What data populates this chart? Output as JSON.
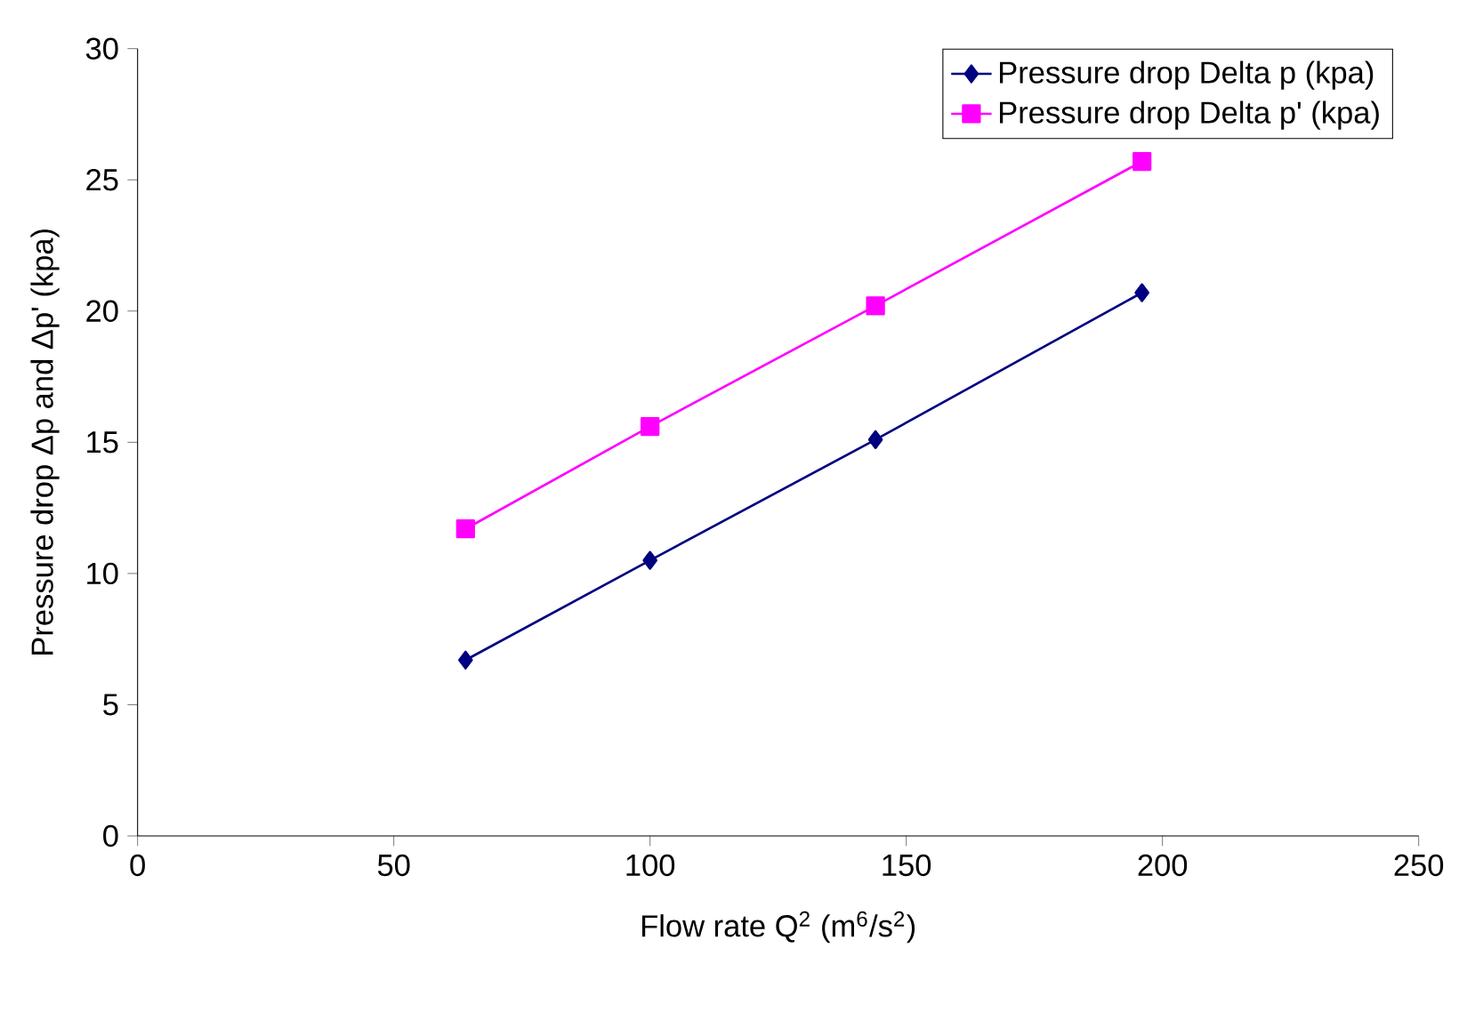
{
  "chart_data": {
    "type": "line",
    "xlabel": "Flow rate Q$^{2}$ (m$^{6}$/s$^{2}$)",
    "ylabel": "Pressure drop Δp and Δp' (kpa)",
    "x": [
      64,
      100,
      144,
      196
    ],
    "series": [
      {
        "name": "Pressure drop Delta p (kpa)",
        "color": "#000080",
        "marker": "diamond",
        "values": [
          6.7,
          10.5,
          15.1,
          20.7
        ]
      },
      {
        "name": "Pressure drop Delta p' (kpa)",
        "color": "#ff00ff",
        "marker": "square",
        "values": [
          11.7,
          15.6,
          20.2,
          25.7
        ]
      }
    ],
    "xlim": [
      0,
      250
    ],
    "xticks": [
      0,
      50,
      100,
      150,
      200,
      250
    ],
    "ylim": [
      0,
      30
    ],
    "yticks": [
      0,
      5,
      10,
      15,
      20,
      25,
      30
    ],
    "grid": false,
    "legend": "top right",
    "line_style": "solid"
  }
}
